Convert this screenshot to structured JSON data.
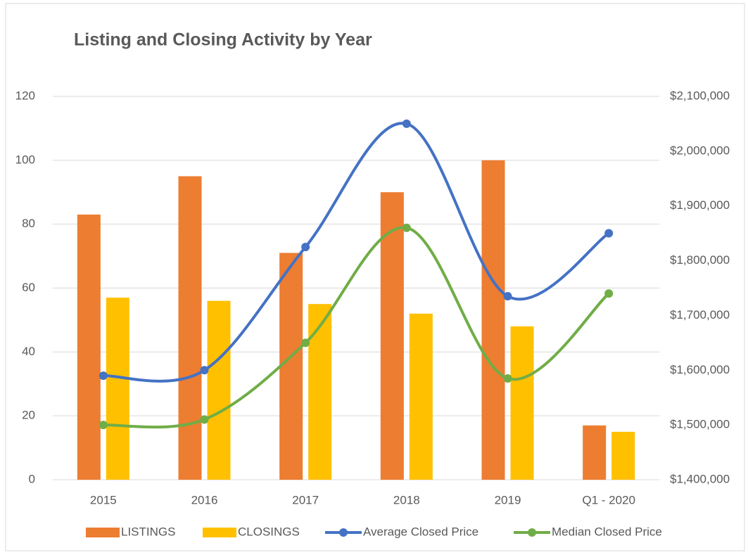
{
  "chart_data": {
    "type": "bar_line",
    "title": "Listing and Closing Activity by Year",
    "categories": [
      "2015",
      "2016",
      "2017",
      "2018",
      "2019",
      "Q1 - 2020"
    ],
    "series": [
      {
        "name": "LISTINGS",
        "type": "bar",
        "color": "#ed7d31",
        "values": [
          83,
          95,
          71,
          90,
          100,
          17
        ]
      },
      {
        "name": "CLOSINGS",
        "type": "bar",
        "color": "#ffc000",
        "values": [
          57,
          56,
          55,
          52,
          48,
          15
        ]
      },
      {
        "name": "Average Closed Price",
        "type": "line",
        "axis": "y2",
        "color": "#4472c4",
        "values": [
          1590000,
          1600000,
          1825000,
          2050000,
          1735000,
          1850000
        ]
      },
      {
        "name": "Median Closed Price",
        "type": "line",
        "axis": "y2",
        "color": "#70ad47",
        "values": [
          1500000,
          1510000,
          1650000,
          1860000,
          1585000,
          1740000
        ]
      }
    ],
    "ylim": [
      0,
      120
    ],
    "yticks": [
      0,
      20,
      40,
      60,
      80,
      100,
      120
    ],
    "y2lim": [
      1400000,
      2100000
    ],
    "y2ticks": [
      {
        "value": 1400000,
        "label": "$1,400,000"
      },
      {
        "value": 1500000,
        "label": "$1,500,000"
      },
      {
        "value": 1600000,
        "label": "$1,600,000"
      },
      {
        "value": 1700000,
        "label": "$1,700,000"
      },
      {
        "value": 1800000,
        "label": "$1,800,000"
      },
      {
        "value": 1900000,
        "label": "$1,900,000"
      },
      {
        "value": 2000000,
        "label": "$2,000,000"
      },
      {
        "value": 2100000,
        "label": "$2,100,000"
      }
    ],
    "grid": true,
    "legend": "bottom"
  }
}
